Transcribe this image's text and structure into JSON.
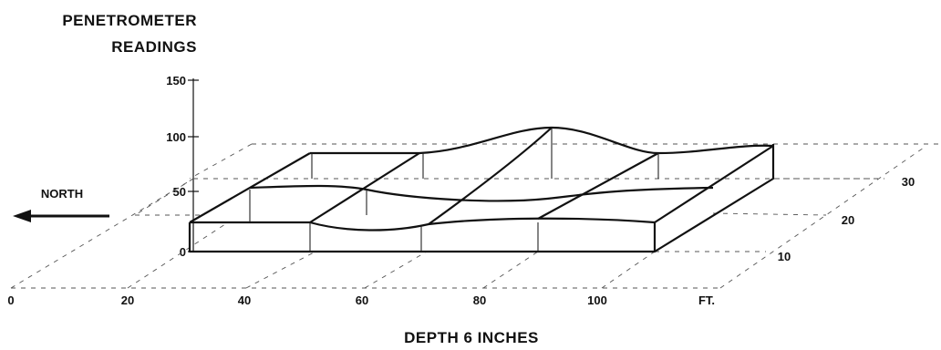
{
  "figure": {
    "y_title_line1": "PENETROMETER",
    "y_title_line2": "READINGS",
    "x_title": "DEPTH 6 INCHES",
    "north_label": "NORTH",
    "y_ticks": [
      "150",
      "100",
      "50",
      "0"
    ],
    "x_ticks": [
      "0",
      "20",
      "40",
      "60",
      "80",
      "100",
      "FT."
    ],
    "z_ticks": [
      "10",
      "20",
      "30"
    ]
  }
}
